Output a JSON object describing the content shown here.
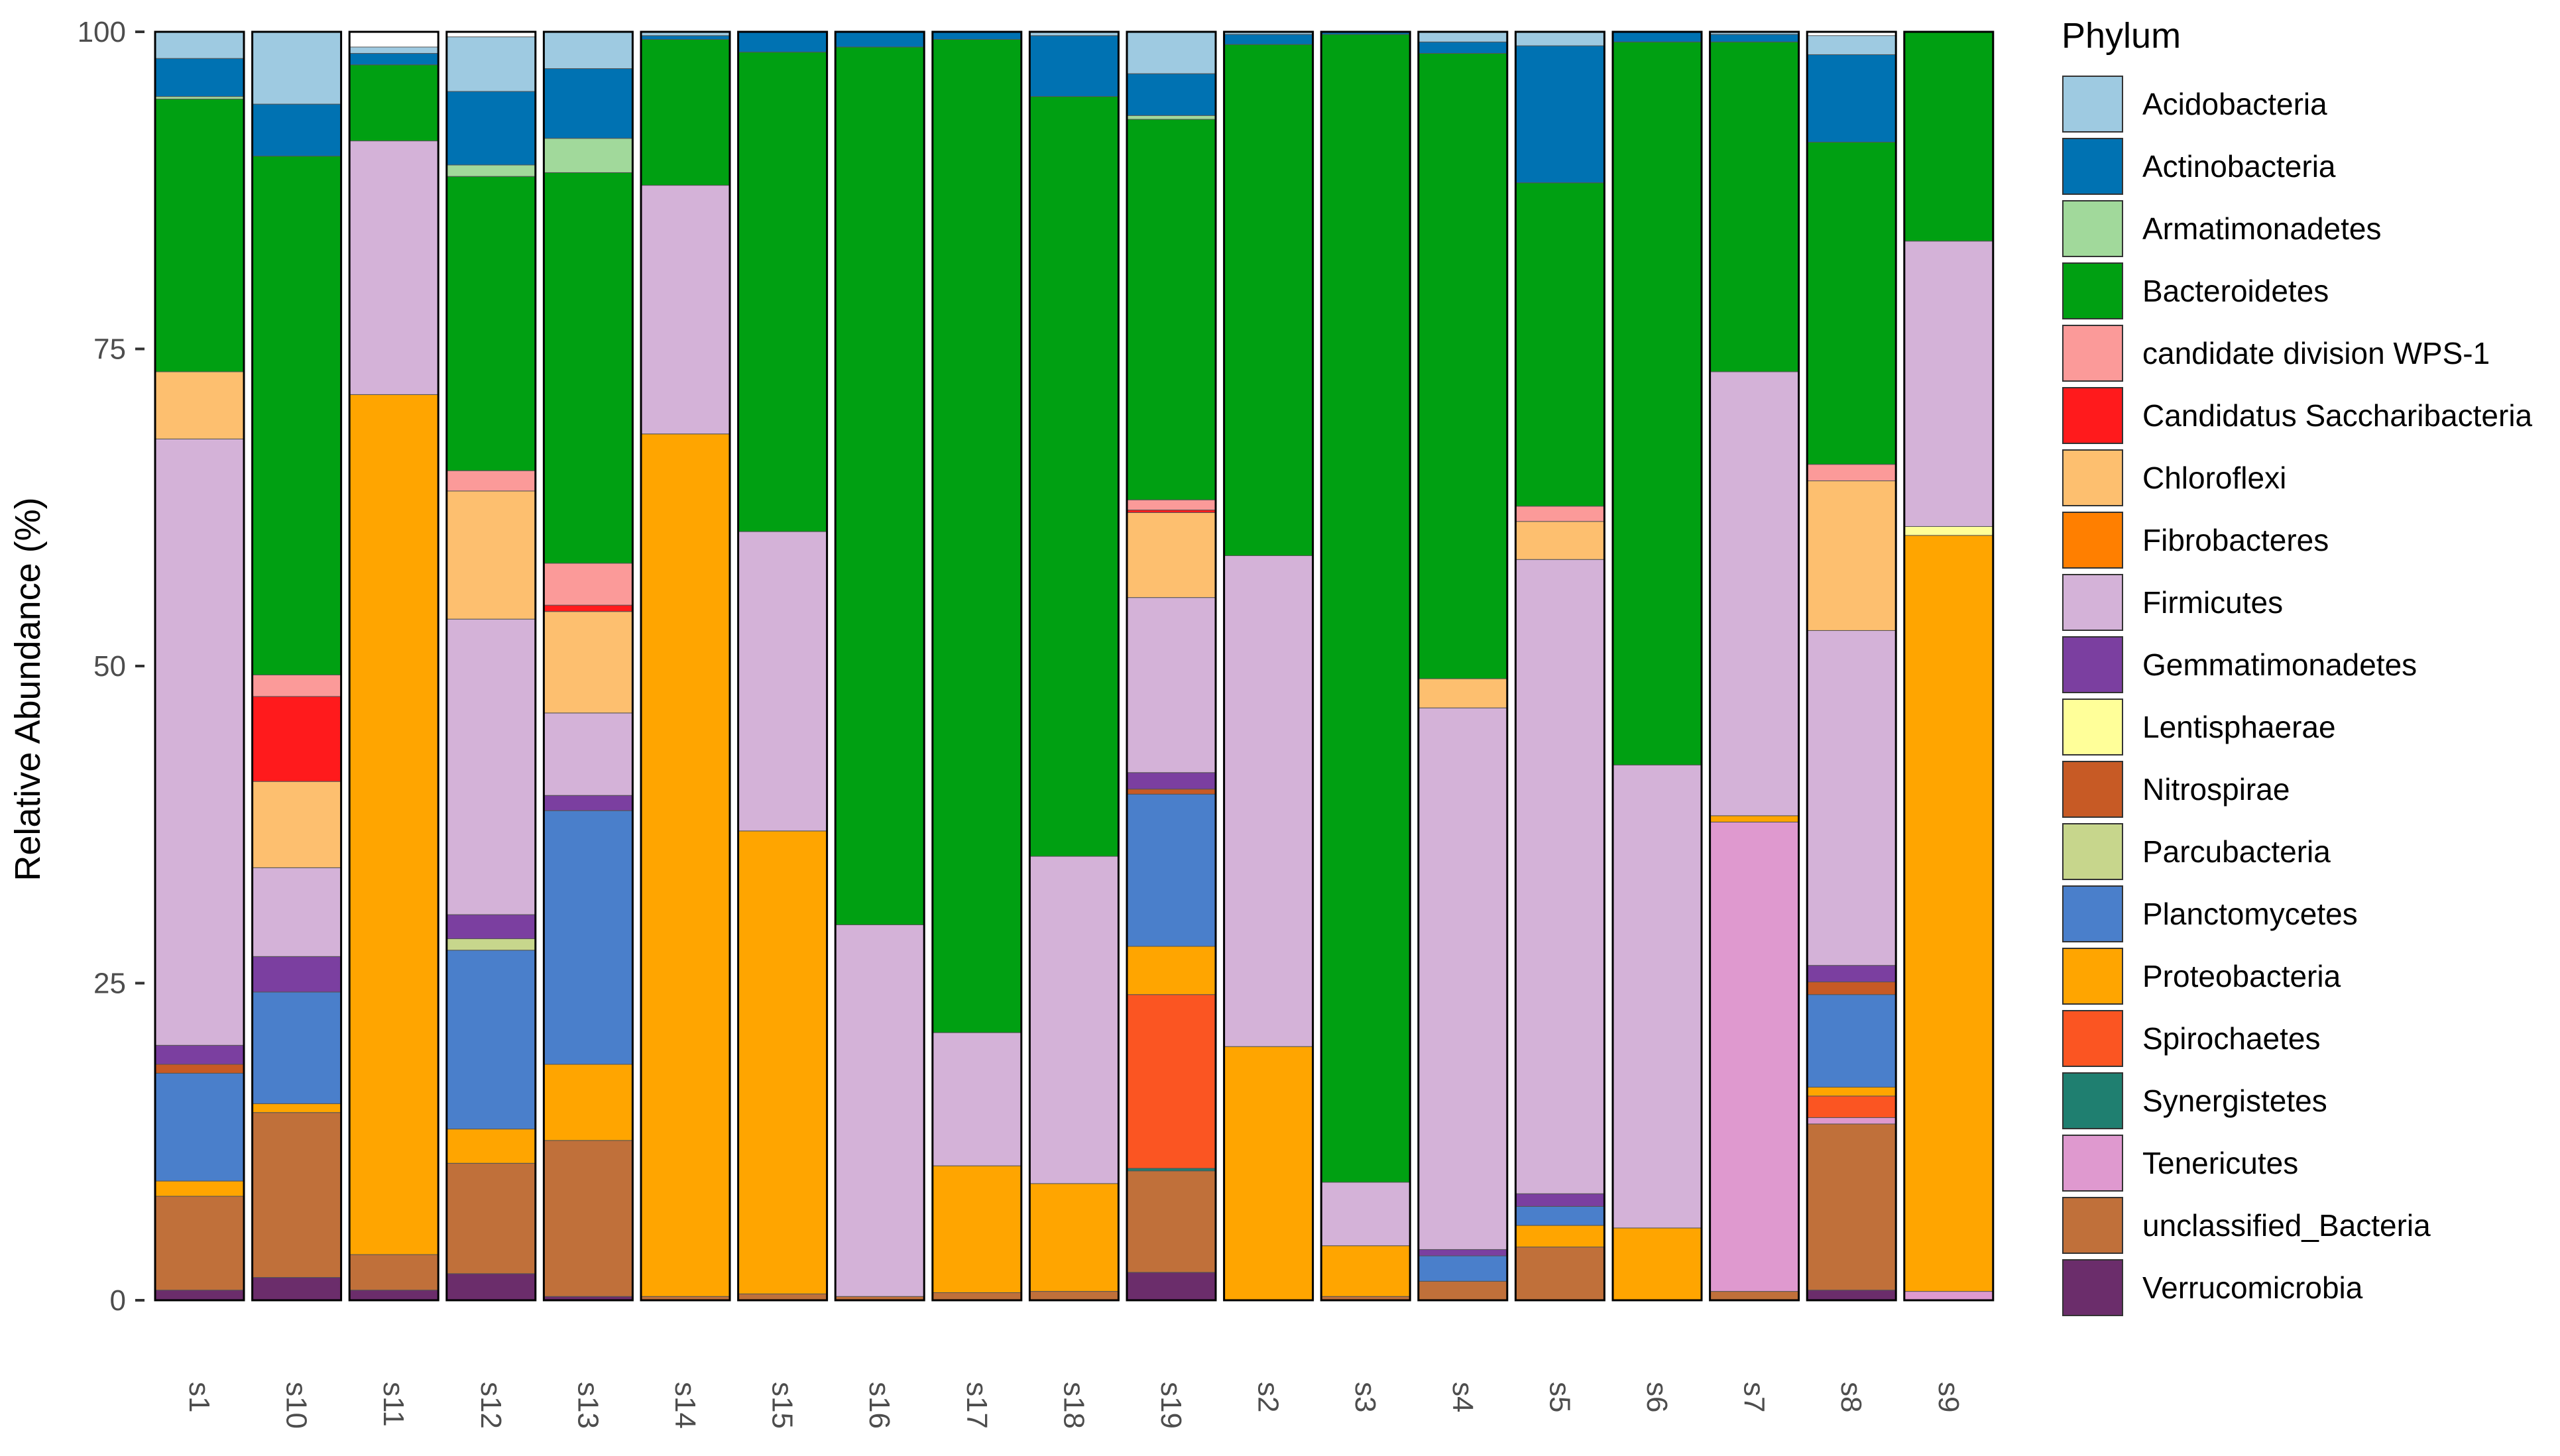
{
  "chart_data": {
    "type": "bar",
    "stacked": true,
    "ylabel": "Relative Abundance (%)",
    "xlabel": "",
    "ylim": [
      0,
      100
    ],
    "yticks": [
      0,
      25,
      50,
      75,
      100
    ],
    "legend_position": "right",
    "legend_title": "Phylum",
    "categories": [
      "s1",
      "s10",
      "s11",
      "s12",
      "s13",
      "s14",
      "s15",
      "s16",
      "s17",
      "s18",
      "s19",
      "s2",
      "s3",
      "s4",
      "s5",
      "s6",
      "s7",
      "s8",
      "s9"
    ],
    "phyla": [
      {
        "name": "Acidobacteria",
        "color": "#9ecae1"
      },
      {
        "name": "Actinobacteria",
        "color": "#0072b2"
      },
      {
        "name": "Armatimonadetes",
        "color": "#a1d99b"
      },
      {
        "name": "Bacteroidetes",
        "color": "#00a012"
      },
      {
        "name": "candidate division WPS-1",
        "color": "#fb9a99"
      },
      {
        "name": "Candidatus Saccharibacteria",
        "color": "#ff1a1c"
      },
      {
        "name": "Chloroflexi",
        "color": "#fdbf6f"
      },
      {
        "name": "Fibrobacteres",
        "color": "#ff7f00"
      },
      {
        "name": "Firmicutes",
        "color": "#d4b2d8"
      },
      {
        "name": "Gemmatimonadetes",
        "color": "#7b3fa0"
      },
      {
        "name": "Lentisphaerae",
        "color": "#ffff99"
      },
      {
        "name": "Nitrospirae",
        "color": "#c75a25"
      },
      {
        "name": "Parcubacteria",
        "color": "#c7d68c"
      },
      {
        "name": "Planctomycetes",
        "color": "#4a7fcb"
      },
      {
        "name": "Proteobacteria",
        "color": "#ffa500"
      },
      {
        "name": "Spirochaetes",
        "color": "#fb5522"
      },
      {
        "name": "Synergistetes",
        "color": "#1f7f70"
      },
      {
        "name": "Tenericutes",
        "color": "#df99cf"
      },
      {
        "name": "unclassified_Bacteria",
        "color": "#c0703a"
      },
      {
        "name": "Verrucomicrobia",
        "color": "#6b2d6b"
      }
    ],
    "series": [
      {
        "name": "Verrucomicrobia",
        "values": [
          0.8,
          1.8,
          0.8,
          2.1,
          0.3,
          0,
          0,
          0,
          0,
          0,
          2.2,
          0,
          0,
          0,
          0,
          0,
          0,
          0.8,
          0
        ]
      },
      {
        "name": "unclassified_Bacteria",
        "values": [
          7.4,
          13.0,
          2.8,
          8.7,
          12.3,
          0.3,
          0.5,
          0.3,
          0.6,
          0.7,
          8.0,
          0,
          0.3,
          1.5,
          4.2,
          0,
          0.7,
          13.1,
          0
        ]
      },
      {
        "name": "Tenericutes",
        "values": [
          0,
          0,
          0,
          0,
          0,
          0,
          0,
          0,
          0,
          0,
          0,
          0,
          0,
          0,
          0,
          0,
          37.0,
          0.5,
          0.7
        ]
      },
      {
        "name": "Synergistetes",
        "values": [
          0,
          0,
          0,
          0,
          0,
          0,
          0,
          0,
          0,
          0,
          0.2,
          0,
          0,
          0,
          0,
          0,
          0,
          0,
          0
        ]
      },
      {
        "name": "Spirochaetes",
        "values": [
          0,
          0,
          0,
          0,
          0,
          0,
          0,
          0,
          0,
          0,
          13.7,
          0,
          0,
          0,
          0,
          0,
          0,
          1.7,
          0
        ]
      },
      {
        "name": "Proteobacteria",
        "values": [
          1.2,
          0.7,
          67.8,
          2.7,
          6.0,
          68.0,
          36.5,
          0,
          10.0,
          8.5,
          3.8,
          20.0,
          4.0,
          0,
          1.7,
          5.7,
          0.5,
          0.7,
          59.6
        ]
      },
      {
        "name": "Planctomycetes",
        "values": [
          8.5,
          8.8,
          0,
          14.1,
          20.0,
          0,
          0,
          0,
          0,
          0,
          12.0,
          0,
          0,
          2.0,
          1.5,
          0,
          0,
          7.3,
          0
        ]
      },
      {
        "name": "Parcubacteria",
        "values": [
          0,
          0,
          0,
          0.9,
          0,
          0,
          0,
          0,
          0,
          0,
          0,
          0,
          0,
          0,
          0,
          0,
          0,
          0,
          0
        ]
      },
      {
        "name": "Nitrospirae",
        "values": [
          0.7,
          0,
          0,
          0,
          0,
          0,
          0,
          0,
          0,
          0,
          0.4,
          0,
          0,
          0,
          0,
          0,
          0,
          1.0,
          0
        ]
      },
      {
        "name": "Lentisphaerae",
        "values": [
          0,
          0,
          0,
          0,
          0,
          0,
          0,
          0,
          0,
          0,
          0,
          0,
          0,
          0,
          0,
          0,
          0,
          0,
          0.7
        ]
      },
      {
        "name": "Gemmatimonadetes",
        "values": [
          1.5,
          2.8,
          0,
          1.9,
          1.2,
          0,
          0,
          0,
          0,
          0,
          1.3,
          0,
          0,
          0.5,
          1.0,
          0,
          0,
          1.3,
          0
        ]
      },
      {
        "name": "Firmicutes",
        "values": [
          47.8,
          7.0,
          20.0,
          23.3,
          6.5,
          19.6,
          23.6,
          29.3,
          10.5,
          25.8,
          13.8,
          38.7,
          5.0,
          42.7,
          50.0,
          36.5,
          35.0,
          26.4,
          22.5
        ]
      },
      {
        "name": "Fibrobacteres",
        "values": [
          0,
          0,
          0,
          0,
          0,
          0,
          0,
          0,
          0,
          0,
          0,
          0,
          0,
          0,
          0,
          0,
          0,
          0,
          0
        ]
      },
      {
        "name": "Chloroflexi",
        "values": [
          5.3,
          6.8,
          0,
          10.1,
          8.0,
          0,
          0,
          0,
          0,
          0,
          6.7,
          0,
          0,
          2.3,
          3.0,
          0,
          0,
          11.8,
          0
        ]
      },
      {
        "name": "Candidatus Saccharibacteria",
        "values": [
          0,
          6.7,
          0,
          0,
          0.5,
          0,
          0,
          0,
          0,
          0,
          0.2,
          0,
          0,
          0,
          0,
          0,
          0,
          0,
          0
        ]
      },
      {
        "name": "candidate division WPS-1",
        "values": [
          0,
          1.7,
          0,
          1.6,
          3.3,
          0,
          0,
          0,
          0,
          0,
          0.8,
          0,
          0,
          0,
          1.2,
          0,
          0,
          1.3,
          0
        ]
      },
      {
        "name": "Bacteroidetes",
        "values": [
          21.5,
          40.9,
          6.0,
          23.2,
          30.8,
          11.5,
          37.8,
          69.2,
          78.3,
          59.9,
          30.0,
          40.3,
          90.5,
          49.3,
          25.5,
          57.0,
          26.0,
          25.4,
          16.5
        ]
      },
      {
        "name": "Armatimonadetes",
        "values": [
          0.2,
          0,
          0,
          0.9,
          2.7,
          0,
          0,
          0,
          0,
          0,
          0.3,
          0,
          0,
          0,
          0,
          0,
          0,
          0,
          0
        ]
      },
      {
        "name": "Actinobacteria",
        "values": [
          3.0,
          4.1,
          0.9,
          5.8,
          5.5,
          0.3,
          1.6,
          1.2,
          0.6,
          4.8,
          3.3,
          0.8,
          0.2,
          0.9,
          10.8,
          0.8,
          0.6,
          6.9,
          0
        ]
      },
      {
        "name": "Acidobacteria",
        "values": [
          2.1,
          5.7,
          0.5,
          4.3,
          2.9,
          0.3,
          0,
          0,
          0,
          0.3,
          3.3,
          0.2,
          0,
          0.8,
          1.1,
          0,
          0.2,
          1.5,
          0
        ]
      }
    ]
  }
}
